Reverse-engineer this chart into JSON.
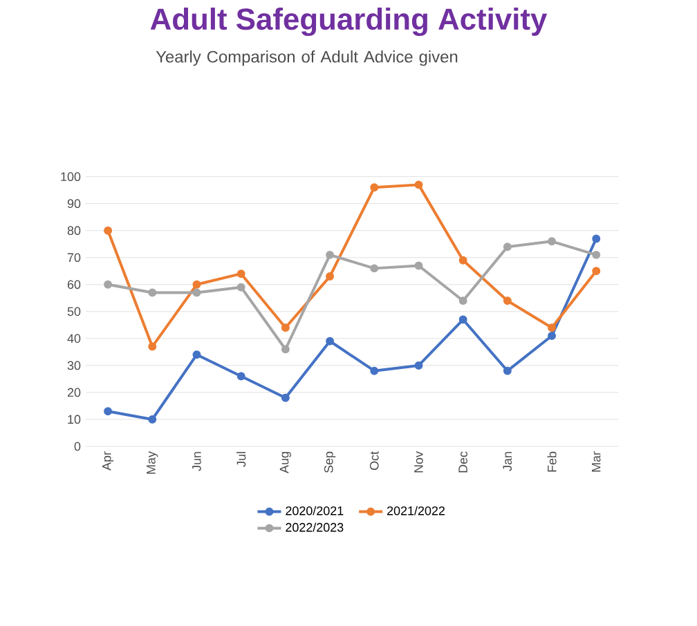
{
  "chart_data": {
    "type": "line",
    "title": "Adult Safeguarding Activity",
    "subtitle": "Yearly Comparison of Adult Advice given",
    "categories": [
      "Apr",
      "May",
      "Jun",
      "Jul",
      "Aug",
      "Sep",
      "Oct",
      "Nov",
      "Dec",
      "Jan",
      "Feb",
      "Mar"
    ],
    "series": [
      {
        "name": "2020/2021",
        "color": "#4472c4",
        "values": [
          13,
          10,
          34,
          26,
          18,
          39,
          28,
          30,
          47,
          28,
          41,
          77
        ]
      },
      {
        "name": "2021/2022",
        "color": "#ed7d31",
        "values": [
          80,
          37,
          60,
          64,
          44,
          63,
          96,
          97,
          69,
          54,
          44,
          65
        ]
      },
      {
        "name": "2022/2023",
        "color": "#a5a5a5",
        "values": [
          60,
          57,
          57,
          59,
          36,
          71,
          66,
          67,
          54,
          74,
          76,
          71
        ]
      }
    ],
    "ylim": [
      0,
      100
    ],
    "yticks": [
      0,
      10,
      20,
      30,
      40,
      50,
      60,
      70,
      80,
      90,
      100
    ],
    "grid": "y",
    "legend": "bottom",
    "marker": "circle",
    "line_style": "solid"
  }
}
